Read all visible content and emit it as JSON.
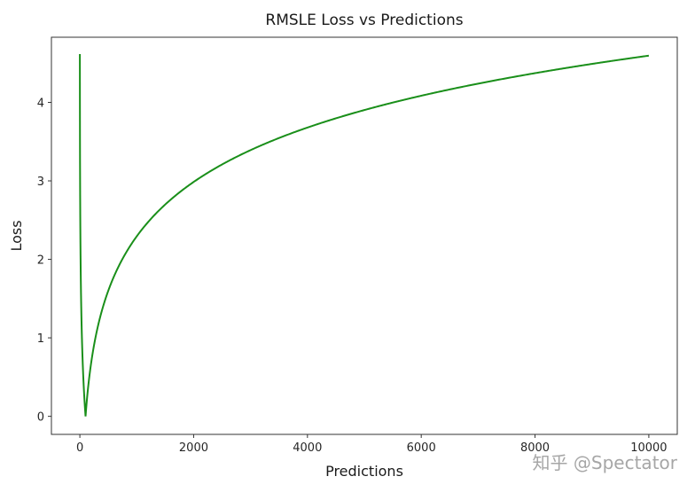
{
  "chart_data": {
    "type": "line",
    "title": "RMSLE Loss vs Predictions",
    "xlabel": "Predictions",
    "ylabel": "Loss",
    "xlim": [
      -500,
      10500
    ],
    "ylim": [
      -0.23,
      4.83
    ],
    "x_ticks": [
      0,
      2000,
      4000,
      6000,
      8000,
      10000
    ],
    "x_tick_labels": [
      "0",
      "2000",
      "4000",
      "6000",
      "8000",
      "10000"
    ],
    "y_ticks": [
      0,
      1,
      2,
      3,
      4
    ],
    "y_tick_labels": [
      "0",
      "1",
      "2",
      "3",
      "4"
    ],
    "grid": false,
    "series": [
      {
        "color": "#1a8f1a",
        "formula": "|ln(x+1) - ln(100+1)|",
        "x": [
          1,
          20,
          50,
          100,
          200,
          300,
          500,
          750,
          1000,
          1500,
          2000,
          3000,
          4000,
          5000,
          6000,
          7000,
          8000,
          9000,
          10000
        ],
        "values": [
          3.92,
          1.57,
          0.69,
          0,
          0.68,
          1.09,
          1.6,
          2.0,
          2.29,
          2.7,
          2.99,
          3.39,
          3.68,
          3.9,
          4.09,
          4.24,
          4.37,
          4.49,
          4.6
        ]
      }
    ]
  },
  "watermark": "知乎 @Spectator"
}
